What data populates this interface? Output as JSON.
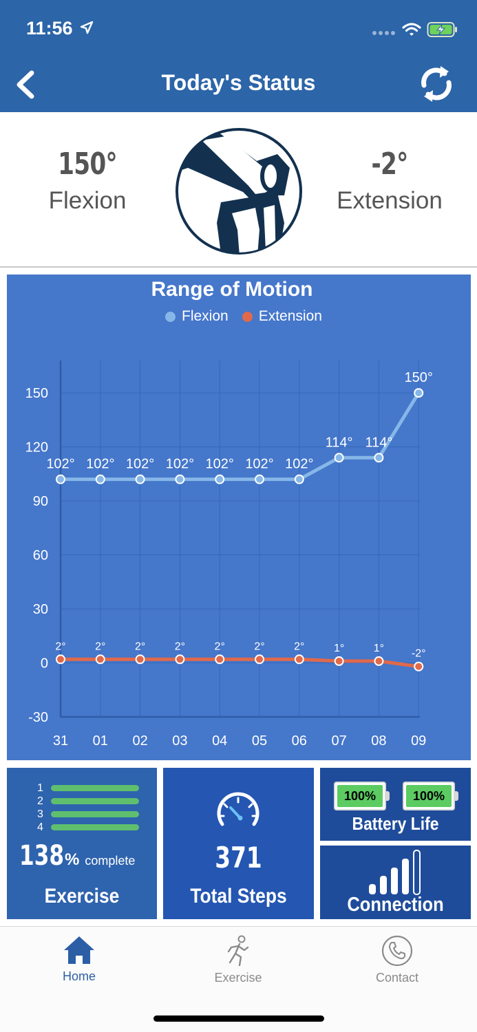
{
  "status_bar": {
    "time": "11:56"
  },
  "header": {
    "title": "Today's Status",
    "back_icon": "chevron-left-icon",
    "refresh_icon": "refresh-icon"
  },
  "summary": {
    "flexion": {
      "value": "150°",
      "label": "Flexion"
    },
    "extension": {
      "value": "-2°",
      "label": "Extension"
    },
    "icon": "knee-joint-icon"
  },
  "chart_data": {
    "type": "line",
    "title": "Range of Motion",
    "categories": [
      "31",
      "01",
      "02",
      "03",
      "04",
      "05",
      "06",
      "07",
      "08",
      "09"
    ],
    "series": [
      {
        "name": "Flexion",
        "color": "#86b7e8",
        "values": [
          102,
          102,
          102,
          102,
          102,
          102,
          102,
          114,
          114,
          150
        ]
      },
      {
        "name": "Extension",
        "color": "#e0694b",
        "values": [
          2,
          2,
          2,
          2,
          2,
          2,
          2,
          1,
          1,
          -2
        ]
      }
    ],
    "data_label_suffix": "°",
    "yticks": [
      150,
      120,
      90,
      60,
      30,
      0,
      -30
    ],
    "ylim": [
      -30,
      168
    ],
    "legend": "top-center",
    "grid": true
  },
  "tiles": {
    "exercise": {
      "rows": [
        "1",
        "2",
        "3",
        "4"
      ],
      "percent": "138",
      "percent_sign": "%",
      "complete_text": "complete",
      "label": "Exercise"
    },
    "steps": {
      "value": "371",
      "label": "Total Steps",
      "icon": "speedometer-icon"
    },
    "battery": {
      "left": "100%",
      "right": "100%",
      "label": "Battery Life"
    },
    "connection": {
      "label": "Connection",
      "icon": "signal-bars-icon"
    }
  },
  "tabbar": {
    "items": [
      {
        "label": "Home",
        "icon": "home-icon",
        "active": true
      },
      {
        "label": "Exercise",
        "icon": "runner-icon",
        "active": false
      },
      {
        "label": "Contact",
        "icon": "phone-icon",
        "active": false
      }
    ]
  },
  "colors": {
    "header": "#2c65a8",
    "chart_bg": "#4577cb",
    "active_tab": "#2c5ea6",
    "progress_green": "#5fbf6e"
  }
}
